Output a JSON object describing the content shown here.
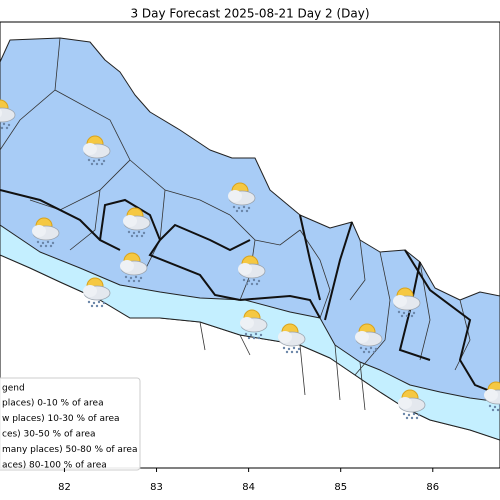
{
  "map": {
    "title": "3 Day Forecast 2025-08-21 Day 2 (Day)",
    "xlim": [
      81.3,
      86.73
    ],
    "xticks": [
      82,
      83,
      84,
      85,
      86
    ],
    "legend": {
      "title": "gend",
      "entries": [
        "places)  0-10 % of area",
        "w places)  10-30 % of area",
        "ces) 30-50  % of area",
        "many places) 50-80 % of area",
        "aces) 80-100 % of area"
      ]
    }
  }
}
